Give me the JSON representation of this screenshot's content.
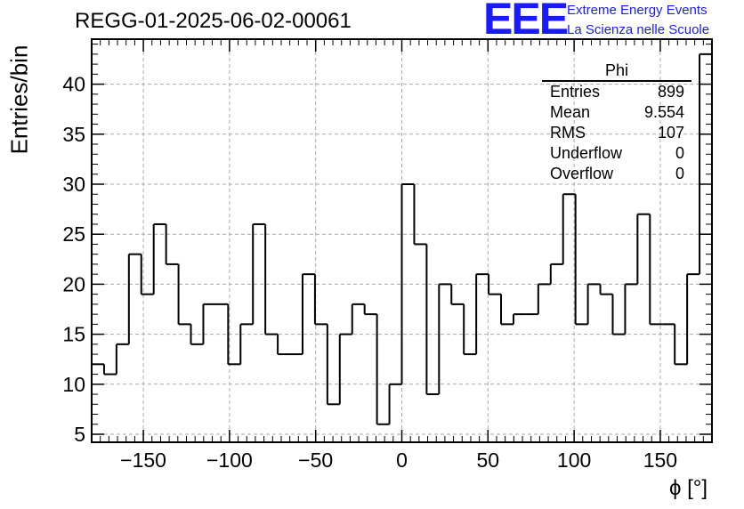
{
  "title": "REGG-01-2025-06-02-00061",
  "logo": {
    "text": "EEE",
    "line1": "Extreme Energy Events",
    "line2": "La Scienza nelle Scuole",
    "color": "#1a1aff"
  },
  "stats": {
    "name": "Phi",
    "rows": [
      {
        "label": "Entries",
        "value": "899"
      },
      {
        "label": "Mean",
        "value": "9.554"
      },
      {
        "label": "RMS",
        "value": "107"
      },
      {
        "label": "Underflow",
        "value": "0"
      },
      {
        "label": "Overflow",
        "value": "0"
      }
    ]
  },
  "chart_data": {
    "type": "histogram",
    "title": "REGG-01-2025-06-02-00061",
    "xlabel": "ϕ [°]",
    "ylabel": "Entries/bin",
    "xlim": [
      -180,
      180
    ],
    "ylim": [
      4.2,
      44.5
    ],
    "bin_width": 7.2,
    "bin_start": -180,
    "values": [
      12,
      11,
      14,
      23,
      19,
      26,
      22,
      16,
      14,
      18,
      18,
      12,
      16,
      26,
      15,
      13,
      13,
      21,
      16,
      8,
      15,
      18,
      17,
      6,
      10,
      30,
      24,
      9,
      20,
      18,
      13,
      21,
      19,
      16,
      17,
      17,
      20,
      22,
      29,
      16,
      20,
      19,
      15,
      20,
      27,
      16,
      16,
      12,
      21,
      43
    ],
    "x_ticks": [
      -150,
      -100,
      -50,
      0,
      50,
      100,
      150
    ],
    "x_tick_labels": [
      "−150",
      "−100",
      "−50",
      "0",
      "50",
      "100",
      "150"
    ],
    "y_ticks": [
      5,
      10,
      15,
      20,
      25,
      30,
      35,
      40
    ],
    "y_tick_labels": [
      "5",
      "10",
      "15",
      "20",
      "25",
      "30",
      "35",
      "40"
    ],
    "grid": true,
    "line_color": "#000000",
    "grid_color": "#aaaaaa"
  }
}
